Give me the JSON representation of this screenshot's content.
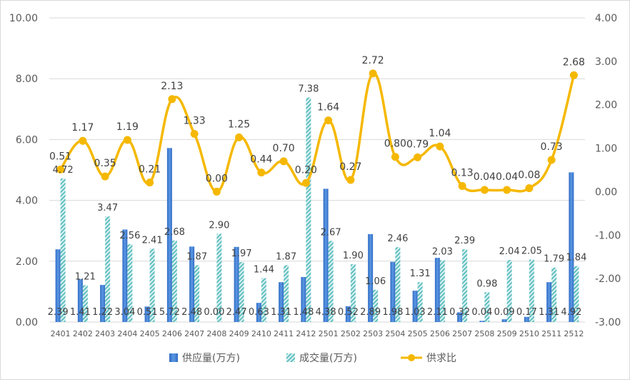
{
  "chart_data": {
    "type": "bar+line",
    "title": "",
    "categories": [
      "2401",
      "2402",
      "2403",
      "2404",
      "2405",
      "2406",
      "2407",
      "2408",
      "2409",
      "2410",
      "2411",
      "2412",
      "2501",
      "2502",
      "2503",
      "2504",
      "2505",
      "2506",
      "2507",
      "2508",
      "2509",
      "2510",
      "2511",
      "2512"
    ],
    "bar_series": [
      {
        "name": "供应量(万方)",
        "axis": "left",
        "pattern": "solid-blue",
        "values": [
          2.39,
          1.41,
          1.22,
          3.04,
          0.51,
          5.72,
          2.48,
          0.0,
          2.47,
          0.63,
          1.31,
          1.48,
          4.38,
          0.52,
          2.89,
          1.98,
          1.03,
          2.11,
          0.32,
          0.04,
          0.09,
          0.17,
          1.31,
          4.92
        ],
        "labels": [
          "2.39",
          "1.41",
          "1.22",
          "3.04",
          "0.51",
          "5.72",
          "2.48",
          "0.00",
          "2.47",
          "0.63",
          "1.31",
          "1.48",
          "4.38",
          "0.52",
          "2.89",
          "1.98",
          "1.03",
          "2.11",
          "0.32",
          "0.04",
          "0.09",
          "0.17",
          "1.31",
          "4.92"
        ]
      },
      {
        "name": "成交量(万方)",
        "axis": "left",
        "pattern": "hatched-teal",
        "values": [
          4.72,
          1.21,
          3.47,
          2.56,
          2.41,
          2.68,
          1.87,
          2.9,
          1.97,
          1.44,
          1.87,
          7.38,
          2.67,
          1.9,
          1.06,
          2.46,
          1.31,
          2.03,
          2.39,
          0.98,
          2.04,
          2.05,
          1.79,
          1.84
        ],
        "labels": [
          "4.72",
          "1.21",
          "3.47",
          "2.56",
          "2.41",
          "2.68",
          "1.87",
          "2.90",
          "1.97",
          "1.44",
          "1.87",
          "7.38",
          "2.67",
          "1.90",
          "1.06",
          "2.46",
          "1.31",
          "2.03",
          "2.39",
          "0.98",
          "2.04",
          "2.05",
          "1.79",
          "1.84"
        ]
      }
    ],
    "line_series": {
      "name": "供求比",
      "axis": "right",
      "values": [
        0.51,
        1.17,
        0.35,
        1.19,
        0.21,
        2.13,
        1.33,
        0.0,
        1.25,
        0.44,
        0.7,
        0.2,
        1.64,
        0.27,
        2.72,
        0.8,
        0.79,
        1.04,
        0.13,
        0.04,
        0.04,
        0.08,
        0.73,
        2.68
      ],
      "labels": [
        "0.51",
        "1.17",
        "0.35",
        "1.19",
        "0.21",
        "2.13",
        "1.33",
        "0.00",
        "1.25",
        "0.44",
        "0.70",
        "0.20",
        "1.64",
        "0.27",
        "2.72",
        "0.80",
        "0.79",
        "1.04",
        "0.13",
        "0.04",
        "0.04",
        "0.08",
        "0.73",
        "2.68"
      ]
    },
    "left_axis": {
      "ylim": [
        0,
        10
      ],
      "ticks": [
        "0.00",
        "2.00",
        "4.00",
        "6.00",
        "8.00",
        "10.00"
      ]
    },
    "right_axis": {
      "ylim": [
        -3,
        4
      ],
      "ticks": [
        "-3.00",
        "-2.00",
        "-1.00",
        "0.00",
        "1.00",
        "2.00",
        "3.00",
        "4.00"
      ]
    },
    "grid": true,
    "legend": {
      "position": "bottom",
      "items": [
        {
          "label": "供应量(万方)",
          "kind": "bar-solid"
        },
        {
          "label": "成交量(万方)",
          "kind": "bar-hatched"
        },
        {
          "label": "供求比",
          "kind": "line-marker"
        }
      ]
    },
    "colors": {
      "supply": "#4a86d8",
      "supply_dark": "#2f6bc4",
      "deal": "#5fbfbf",
      "deal_light": "#dff2f2",
      "ratio": "#f5b800",
      "grid": "#d9d9d9",
      "axis_text": "#595959",
      "label_text": "#404040"
    }
  }
}
